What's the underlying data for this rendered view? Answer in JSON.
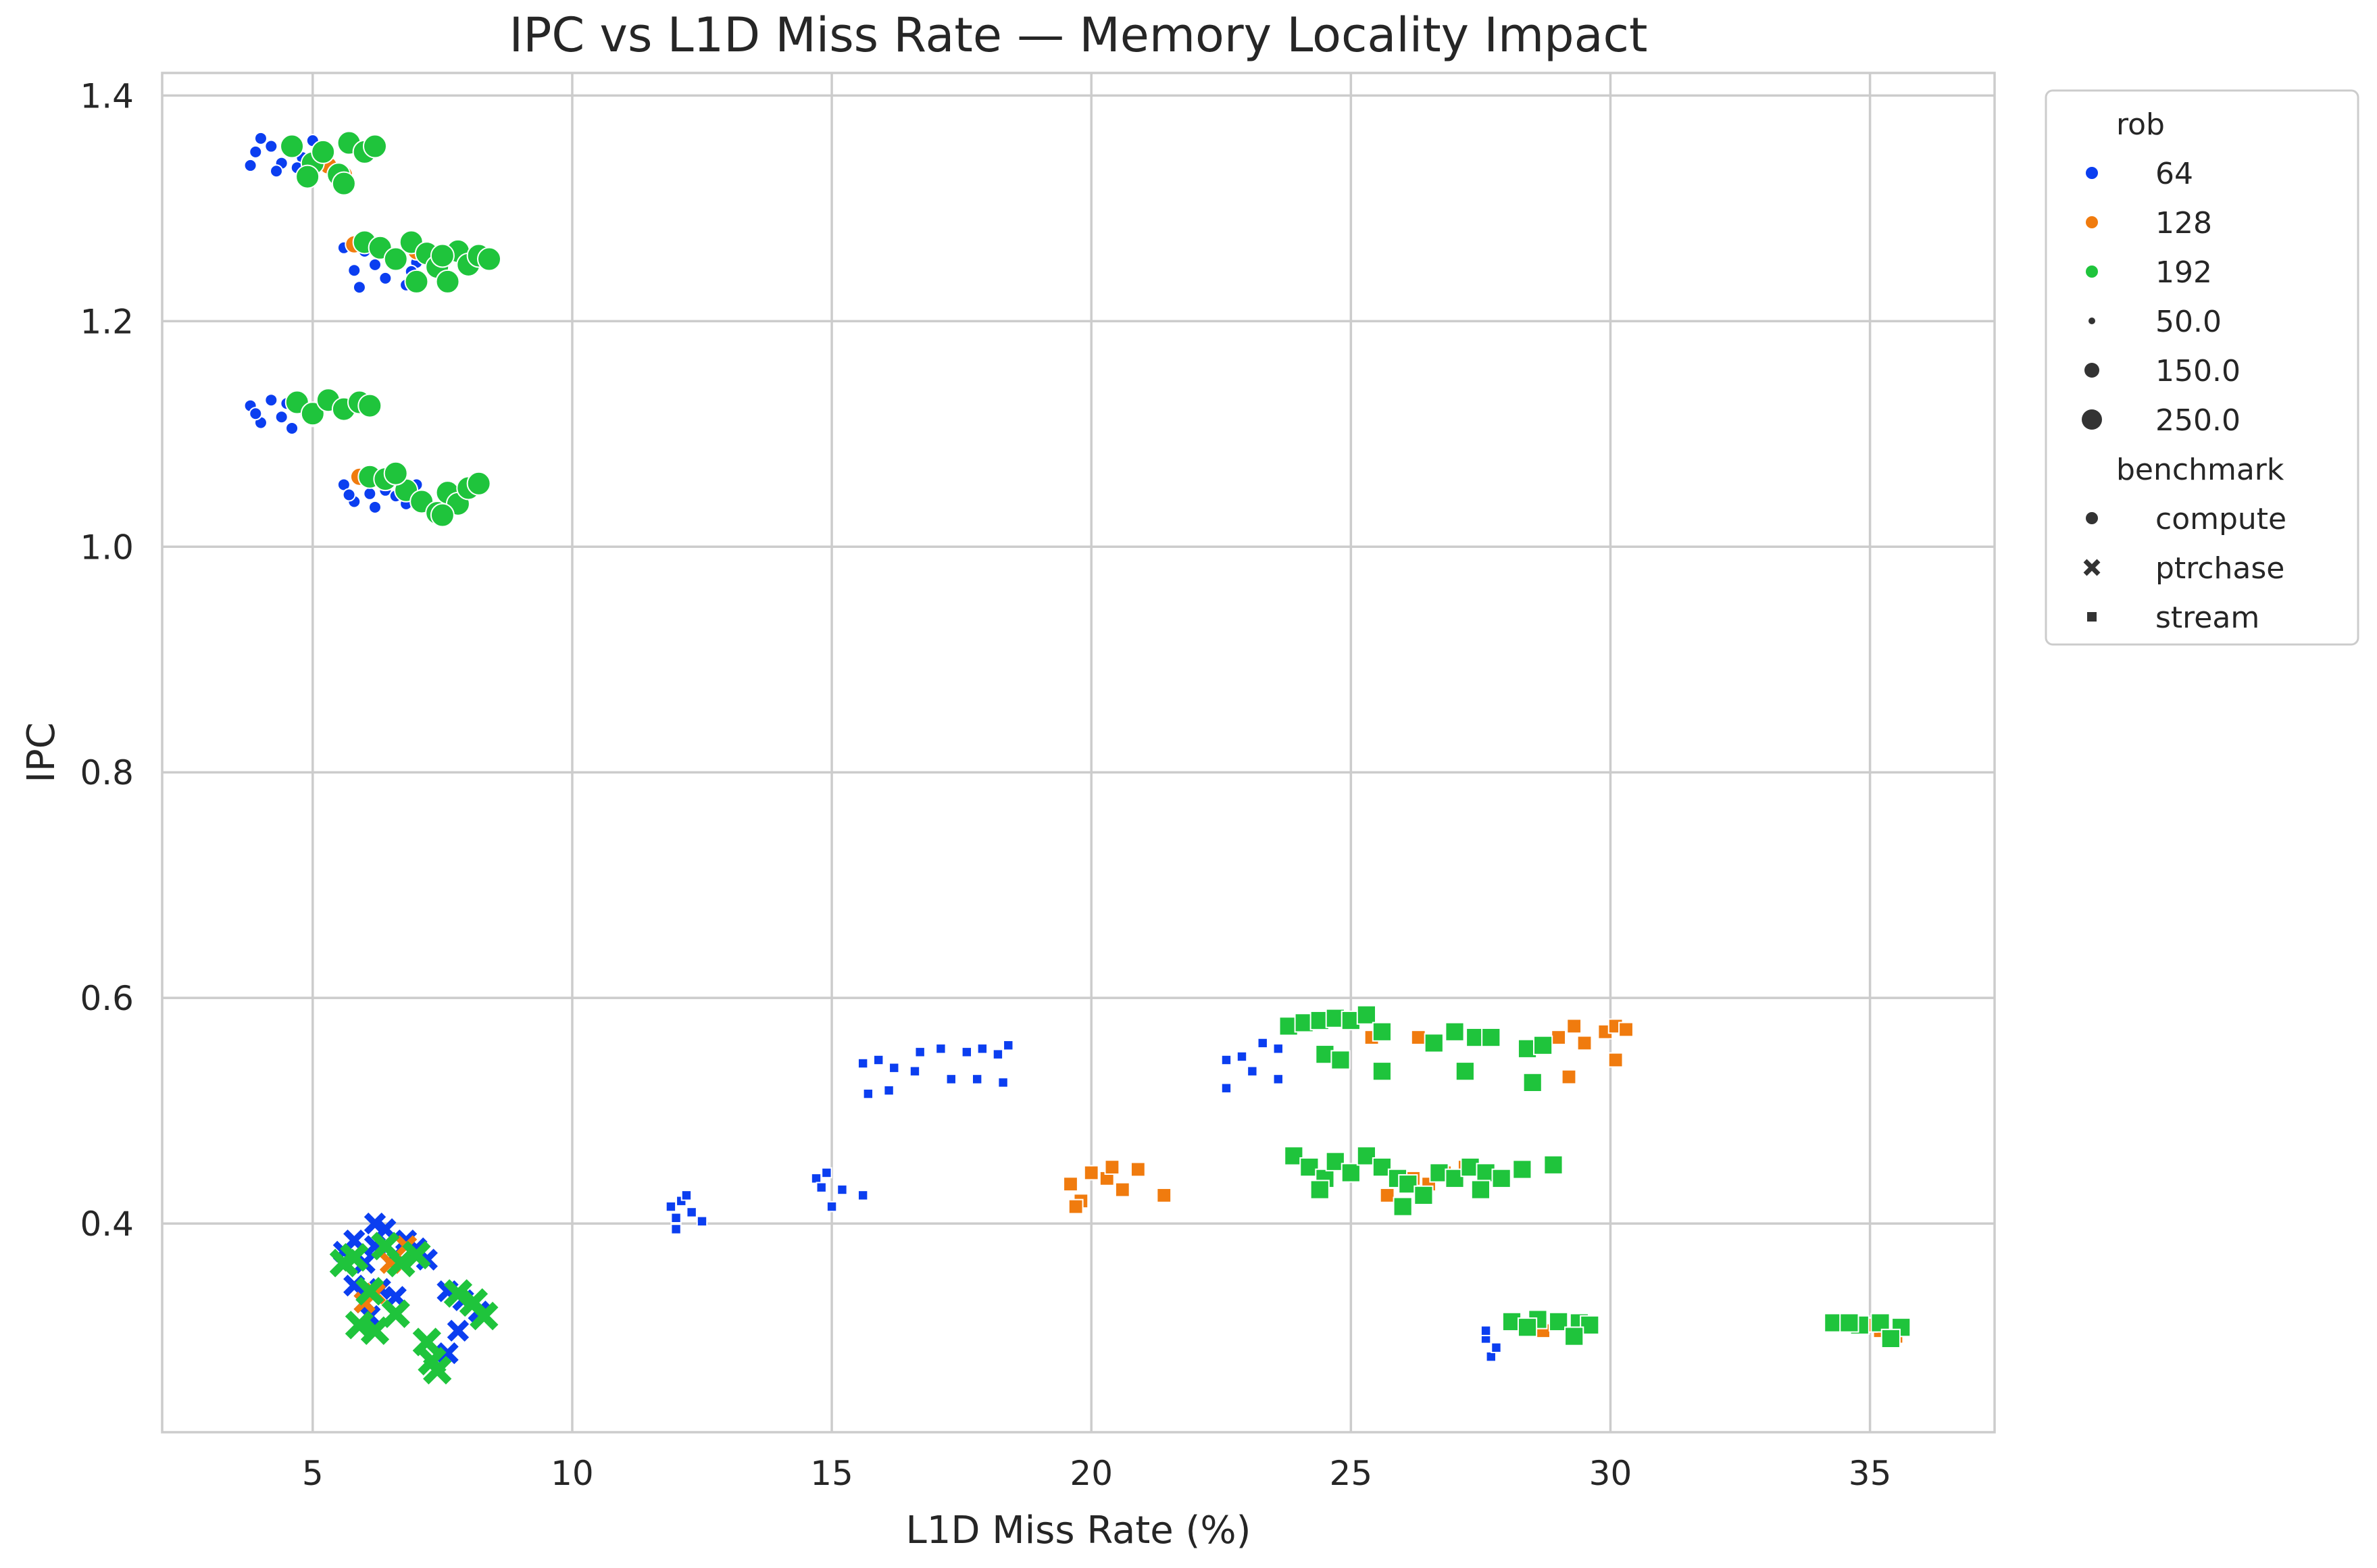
{
  "chart_data": {
    "type": "scatter",
    "title": "IPC vs L1D Miss Rate — Memory Locality Impact",
    "xlabel": "L1D Miss Rate (%)",
    "ylabel": "IPC",
    "xlim": [
      2.1,
      37.4
    ],
    "ylim": [
      0.215,
      1.42
    ],
    "xticks": [
      5,
      10,
      15,
      20,
      25,
      30,
      35
    ],
    "yticks": [
      0.4,
      0.6,
      0.8,
      1.0,
      1.2,
      1.4
    ],
    "xtick_labels": [
      "5",
      "10",
      "15",
      "20",
      "25",
      "30",
      "35"
    ],
    "ytick_labels": [
      "0.4",
      "0.6",
      "0.8",
      "1.0",
      "1.2",
      "1.4"
    ],
    "grid": true,
    "legend_position": "outside-right",
    "legend": {
      "hue_title": "rob",
      "hue_items": [
        {
          "label": "64",
          "color": "#0b3ef0"
        },
        {
          "label": "128",
          "color": "#f07b0e"
        },
        {
          "label": "192",
          "color": "#1fc43c"
        }
      ],
      "size_items": [
        "50.0",
        "150.0",
        "250.0"
      ],
      "style_title": "benchmark",
      "style_items": [
        {
          "label": "compute",
          "marker": "circle"
        },
        {
          "label": "ptrchase",
          "marker": "x"
        },
        {
          "label": "stream",
          "marker": "square"
        }
      ]
    },
    "series": [
      {
        "rob": "64",
        "benchmark": "compute",
        "size": "50.0",
        "points": [
          [
            3.8,
            1.338
          ],
          [
            4.0,
            1.362
          ],
          [
            4.2,
            1.355
          ],
          [
            4.4,
            1.34
          ],
          [
            4.6,
            1.358
          ],
          [
            4.8,
            1.345
          ],
          [
            5.0,
            1.36
          ],
          [
            4.3,
            1.333
          ],
          [
            3.9,
            1.35
          ],
          [
            4.7,
            1.336
          ],
          [
            5.6,
            1.265
          ],
          [
            5.8,
            1.245
          ],
          [
            6.0,
            1.262
          ],
          [
            6.2,
            1.25
          ],
          [
            6.4,
            1.238
          ],
          [
            6.6,
            1.258
          ],
          [
            6.8,
            1.232
          ],
          [
            7.0,
            1.252
          ],
          [
            5.9,
            1.23
          ],
          [
            7.3,
            1.247
          ],
          [
            6.3,
            1.268
          ],
          [
            6.9,
            1.244
          ],
          [
            3.8,
            1.125
          ],
          [
            4.0,
            1.11
          ],
          [
            4.2,
            1.13
          ],
          [
            4.4,
            1.115
          ],
          [
            4.6,
            1.105
          ],
          [
            4.8,
            1.122
          ],
          [
            5.0,
            1.112
          ],
          [
            5.2,
            1.128
          ],
          [
            3.9,
            1.118
          ],
          [
            4.5,
            1.127
          ],
          [
            5.6,
            1.055
          ],
          [
            5.8,
            1.04
          ],
          [
            6.0,
            1.058
          ],
          [
            6.2,
            1.035
          ],
          [
            6.4,
            1.05
          ],
          [
            6.6,
            1.045
          ],
          [
            6.8,
            1.038
          ],
          [
            7.0,
            1.055
          ],
          [
            7.2,
            1.042
          ],
          [
            6.1,
            1.047
          ],
          [
            6.7,
            1.056
          ],
          [
            5.7,
            1.046
          ]
        ]
      },
      {
        "rob": "128",
        "benchmark": "compute",
        "size": "150.0",
        "points": [
          [
            5.3,
            1.338
          ],
          [
            5.6,
            1.33
          ],
          [
            5.8,
            1.268
          ],
          [
            6.4,
            1.262
          ],
          [
            7.0,
            1.262
          ],
          [
            5.9,
            1.062
          ],
          [
            6.5,
            1.06
          ]
        ]
      },
      {
        "rob": "192",
        "benchmark": "compute",
        "size": "250.0",
        "points": [
          [
            4.6,
            1.355
          ],
          [
            5.0,
            1.34
          ],
          [
            5.2,
            1.35
          ],
          [
            5.5,
            1.33
          ],
          [
            5.7,
            1.358
          ],
          [
            6.0,
            1.35
          ],
          [
            6.2,
            1.355
          ],
          [
            4.9,
            1.328
          ],
          [
            5.6,
            1.322
          ],
          [
            6.0,
            1.27
          ],
          [
            6.3,
            1.265
          ],
          [
            6.6,
            1.255
          ],
          [
            6.9,
            1.27
          ],
          [
            7.2,
            1.26
          ],
          [
            7.4,
            1.248
          ],
          [
            7.6,
            1.235
          ],
          [
            7.8,
            1.262
          ],
          [
            8.0,
            1.25
          ],
          [
            8.2,
            1.258
          ],
          [
            8.4,
            1.255
          ],
          [
            7.0,
            1.235
          ],
          [
            7.5,
            1.258
          ],
          [
            4.7,
            1.128
          ],
          [
            5.0,
            1.118
          ],
          [
            5.3,
            1.13
          ],
          [
            5.6,
            1.122
          ],
          [
            5.9,
            1.128
          ],
          [
            6.1,
            1.125
          ],
          [
            6.1,
            1.062
          ],
          [
            6.4,
            1.06
          ],
          [
            6.8,
            1.05
          ],
          [
            7.1,
            1.04
          ],
          [
            7.4,
            1.03
          ],
          [
            7.6,
            1.048
          ],
          [
            7.8,
            1.038
          ],
          [
            8.0,
            1.052
          ],
          [
            8.2,
            1.056
          ],
          [
            7.5,
            1.028
          ],
          [
            6.6,
            1.065
          ]
        ]
      },
      {
        "rob": "64",
        "benchmark": "ptrchase",
        "size": "150.0",
        "points": [
          [
            5.6,
            0.375
          ],
          [
            5.8,
            0.385
          ],
          [
            6.0,
            0.365
          ],
          [
            6.2,
            0.38
          ],
          [
            6.4,
            0.395
          ],
          [
            6.6,
            0.372
          ],
          [
            6.8,
            0.385
          ],
          [
            7.0,
            0.378
          ],
          [
            7.2,
            0.368
          ],
          [
            5.8,
            0.345
          ],
          [
            6.0,
            0.33
          ],
          [
            6.3,
            0.342
          ],
          [
            6.6,
            0.335
          ],
          [
            6.2,
            0.4
          ],
          [
            7.6,
            0.34
          ],
          [
            7.9,
            0.332
          ],
          [
            8.2,
            0.322
          ],
          [
            7.8,
            0.305
          ],
          [
            7.6,
            0.285
          ],
          [
            6.1,
            0.318
          ]
        ]
      },
      {
        "rob": "128",
        "benchmark": "ptrchase",
        "size": "150.0",
        "points": [
          [
            6.0,
            0.33
          ],
          [
            6.2,
            0.338
          ],
          [
            6.5,
            0.365
          ],
          [
            6.8,
            0.38
          ]
        ]
      },
      {
        "rob": "192",
        "benchmark": "ptrchase",
        "size": "250.0",
        "points": [
          [
            5.6,
            0.365
          ],
          [
            5.8,
            0.37
          ],
          [
            6.1,
            0.34
          ],
          [
            6.4,
            0.38
          ],
          [
            6.7,
            0.365
          ],
          [
            7.0,
            0.372
          ],
          [
            5.9,
            0.31
          ],
          [
            6.2,
            0.305
          ],
          [
            7.2,
            0.295
          ],
          [
            7.3,
            0.278
          ],
          [
            7.4,
            0.27
          ],
          [
            7.8,
            0.338
          ],
          [
            8.1,
            0.33
          ],
          [
            8.3,
            0.318
          ],
          [
            6.6,
            0.32
          ]
        ]
      },
      {
        "rob": "64",
        "benchmark": "stream",
        "size": "50.0",
        "points": [
          [
            11.9,
            0.415
          ],
          [
            12.0,
            0.405
          ],
          [
            12.1,
            0.42
          ],
          [
            12.3,
            0.41
          ],
          [
            12.5,
            0.402
          ],
          [
            12.0,
            0.395
          ],
          [
            12.2,
            0.425
          ],
          [
            14.7,
            0.44
          ],
          [
            14.9,
            0.445
          ],
          [
            15.0,
            0.415
          ],
          [
            15.2,
            0.43
          ],
          [
            15.6,
            0.425
          ],
          [
            14.8,
            0.432
          ],
          [
            15.6,
            0.542
          ],
          [
            15.9,
            0.545
          ],
          [
            16.2,
            0.538
          ],
          [
            15.7,
            0.515
          ],
          [
            16.1,
            0.518
          ],
          [
            16.7,
            0.552
          ],
          [
            17.1,
            0.555
          ],
          [
            16.6,
            0.535
          ],
          [
            17.3,
            0.528
          ],
          [
            17.6,
            0.552
          ],
          [
            17.9,
            0.555
          ],
          [
            18.2,
            0.55
          ],
          [
            18.4,
            0.558
          ],
          [
            17.8,
            0.528
          ],
          [
            18.3,
            0.525
          ],
          [
            22.6,
            0.545
          ],
          [
            22.9,
            0.548
          ],
          [
            22.6,
            0.52
          ],
          [
            23.3,
            0.56
          ],
          [
            23.6,
            0.555
          ],
          [
            23.6,
            0.528
          ],
          [
            23.1,
            0.535
          ],
          [
            27.6,
            0.298
          ],
          [
            27.7,
            0.282
          ],
          [
            27.8,
            0.29
          ],
          [
            27.6,
            0.305
          ]
        ]
      },
      {
        "rob": "128",
        "benchmark": "stream",
        "size": "150.0",
        "points": [
          [
            19.6,
            0.435
          ],
          [
            19.8,
            0.42
          ],
          [
            20.0,
            0.445
          ],
          [
            20.3,
            0.44
          ],
          [
            20.6,
            0.43
          ],
          [
            20.9,
            0.448
          ],
          [
            21.4,
            0.425
          ],
          [
            19.7,
            0.415
          ],
          [
            20.4,
            0.45
          ],
          [
            25.4,
            0.565
          ],
          [
            26.3,
            0.565
          ],
          [
            28.7,
            0.555
          ],
          [
            29.0,
            0.565
          ],
          [
            29.3,
            0.575
          ],
          [
            29.5,
            0.56
          ],
          [
            29.2,
            0.53
          ],
          [
            29.9,
            0.57
          ],
          [
            30.1,
            0.575
          ],
          [
            30.3,
            0.572
          ],
          [
            30.1,
            0.545
          ],
          [
            26.2,
            0.44
          ],
          [
            26.5,
            0.435
          ],
          [
            26.8,
            0.445
          ],
          [
            27.2,
            0.45
          ],
          [
            25.7,
            0.425
          ],
          [
            28.7,
            0.305
          ],
          [
            35.2,
            0.305
          ],
          [
            35.5,
            0.3
          ],
          [
            35.0,
            0.31
          ]
        ]
      },
      {
        "rob": "192",
        "benchmark": "stream",
        "size": "250.0",
        "points": [
          [
            23.8,
            0.575
          ],
          [
            24.1,
            0.578
          ],
          [
            24.4,
            0.58
          ],
          [
            24.7,
            0.582
          ],
          [
            25.0,
            0.58
          ],
          [
            25.3,
            0.585
          ],
          [
            24.5,
            0.55
          ],
          [
            24.8,
            0.545
          ],
          [
            25.6,
            0.535
          ],
          [
            25.6,
            0.57
          ],
          [
            26.6,
            0.56
          ],
          [
            27.0,
            0.57
          ],
          [
            27.2,
            0.535
          ],
          [
            27.4,
            0.565
          ],
          [
            27.7,
            0.565
          ],
          [
            28.5,
            0.525
          ],
          [
            28.4,
            0.555
          ],
          [
            28.7,
            0.558
          ],
          [
            23.9,
            0.46
          ],
          [
            24.2,
            0.45
          ],
          [
            24.5,
            0.44
          ],
          [
            24.7,
            0.455
          ],
          [
            25.0,
            0.445
          ],
          [
            25.3,
            0.46
          ],
          [
            25.6,
            0.45
          ],
          [
            25.9,
            0.44
          ],
          [
            26.1,
            0.435
          ],
          [
            26.4,
            0.425
          ],
          [
            26.7,
            0.445
          ],
          [
            27.0,
            0.44
          ],
          [
            27.3,
            0.45
          ],
          [
            27.6,
            0.445
          ],
          [
            27.9,
            0.44
          ],
          [
            28.3,
            0.448
          ],
          [
            28.9,
            0.452
          ],
          [
            26.0,
            0.415
          ],
          [
            27.5,
            0.43
          ],
          [
            24.4,
            0.43
          ],
          [
            28.1,
            0.313
          ],
          [
            28.6,
            0.315
          ],
          [
            29.0,
            0.313
          ],
          [
            29.4,
            0.312
          ],
          [
            29.6,
            0.31
          ],
          [
            29.3,
            0.3
          ],
          [
            28.4,
            0.308
          ],
          [
            34.3,
            0.312
          ],
          [
            34.8,
            0.31
          ],
          [
            35.2,
            0.312
          ],
          [
            35.6,
            0.308
          ],
          [
            35.4,
            0.298
          ],
          [
            34.6,
            0.312
          ]
        ]
      }
    ]
  }
}
